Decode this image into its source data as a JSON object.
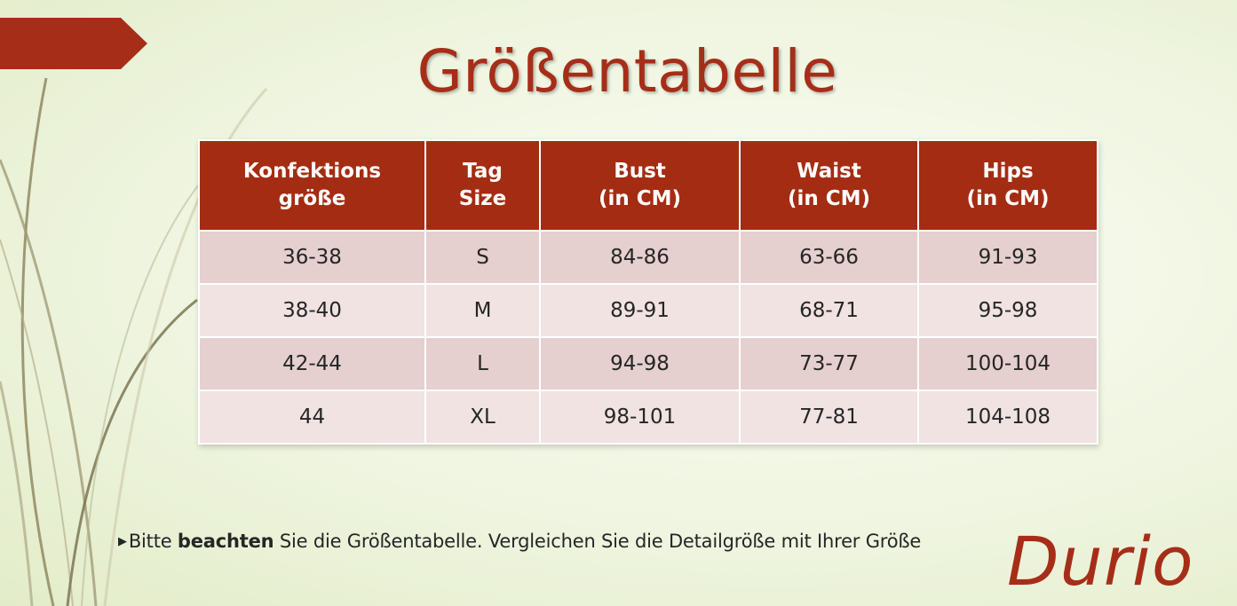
{
  "title": "Größentabelle",
  "table": {
    "headers": [
      {
        "line1": "Konfektions",
        "line2": "größe"
      },
      {
        "line1": "Tag",
        "line2": "Size"
      },
      {
        "line1": "Bust",
        "line2": "(in CM)"
      },
      {
        "line1": "Waist",
        "line2": "(in CM)"
      },
      {
        "line1": "Hips",
        "line2": "(in CM)"
      }
    ],
    "rows": [
      [
        "36-38",
        "S",
        "84-86",
        "63-66",
        "91-93"
      ],
      [
        "38-40",
        "M",
        "89-91",
        "68-71",
        "95-98"
      ],
      [
        "42-44",
        "L",
        "94-98",
        "73-77",
        "100-104"
      ],
      [
        "44",
        "XL",
        "98-101",
        "77-81",
        "104-108"
      ]
    ]
  },
  "note": {
    "prefix": "Bitte ",
    "bold": "beachten",
    "suffix": " Sie die Größentabelle. Vergleichen Sie die Detailgröße mit Ihrer Größe"
  },
  "brand": "Durio",
  "colors": {
    "accent": "#a42c13",
    "row_odd": "#e6cfcf",
    "row_even": "#f0e3e2",
    "background": "#eff5e0"
  }
}
